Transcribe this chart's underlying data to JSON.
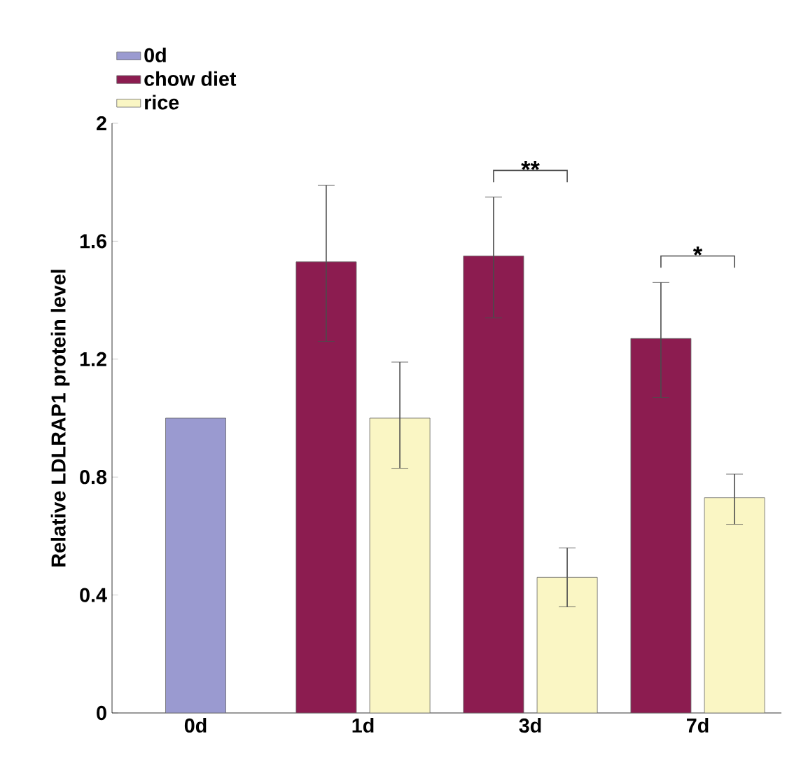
{
  "chart_data": {
    "type": "bar",
    "ylabel": "Relative LDLRAP1 protein level",
    "categories": [
      "0d",
      "1d",
      "3d",
      "7d"
    ],
    "series": [
      {
        "name": "0d",
        "color": "#9a9ad0",
        "values": [
          1.0,
          null,
          null,
          null
        ],
        "errors": [
          null,
          null,
          null,
          null
        ]
      },
      {
        "name": "chow diet",
        "color": "#8c1c50",
        "values": [
          null,
          1.53,
          1.55,
          1.27
        ],
        "errors": [
          null,
          [
            1.26,
            1.79
          ],
          [
            1.34,
            1.75
          ],
          [
            1.07,
            1.46
          ]
        ]
      },
      {
        "name": "rice",
        "color": "#faf6c4",
        "values": [
          null,
          1.0,
          0.46,
          0.73
        ],
        "errors": [
          null,
          [
            0.83,
            1.19
          ],
          [
            0.36,
            0.56
          ],
          [
            0.64,
            0.81
          ]
        ]
      }
    ],
    "ylim": [
      0,
      2
    ],
    "yticks": [
      0,
      0.4,
      0.8,
      1.2,
      1.6,
      2
    ],
    "annotations": [
      "**",
      "*"
    ],
    "legend": "top left",
    "grid": false
  }
}
